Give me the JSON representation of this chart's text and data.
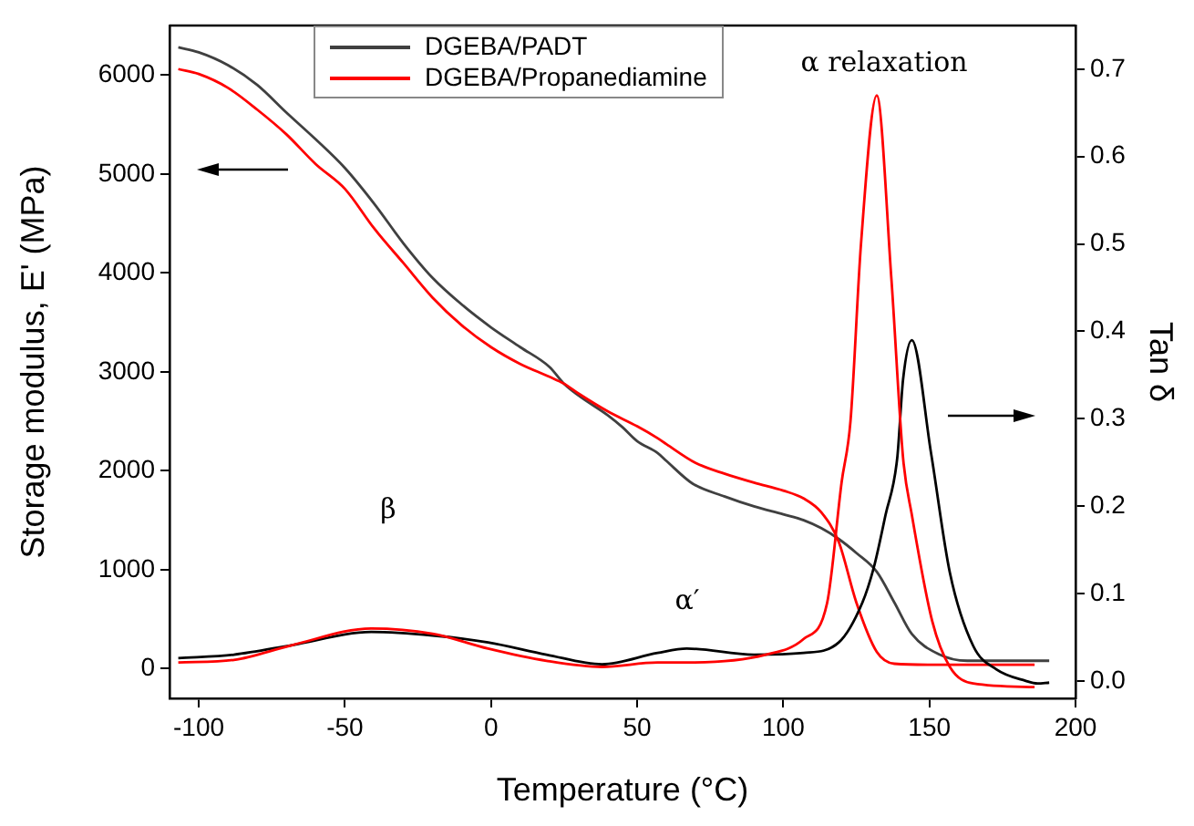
{
  "chart_data": {
    "type": "line",
    "xlabel": "Temperature (°C)",
    "ylabel": "Storage modulus, E' (MPa)",
    "y2label": "Tan δ",
    "xlim": [
      -110,
      200
    ],
    "xticks": [
      -100,
      -50,
      0,
      50,
      100,
      150,
      200
    ],
    "ylim": [
      -300,
      6500
    ],
    "yticks": [
      0,
      1000,
      2000,
      3000,
      4000,
      5000,
      6000
    ],
    "y2lim": [
      -0.02,
      0.75
    ],
    "y2ticks": [
      {
        "value": 0,
        "label": "0.0"
      },
      {
        "value": 0.1,
        "label": "0.1"
      },
      {
        "value": 0.2,
        "label": "0.2"
      },
      {
        "value": 0.3,
        "label": "0.3"
      },
      {
        "value": 0.4,
        "label": "0.4"
      },
      {
        "value": 0.5,
        "label": "0.5"
      },
      {
        "value": 0.6,
        "label": "0.6"
      },
      {
        "value": 0.7,
        "label": "0.7"
      }
    ],
    "grid": false,
    "legend": "top",
    "marker": "none",
    "line_style": "solid",
    "series": [
      {
        "name": "DGEBA/PADT",
        "color": "#404040",
        "x": [
          -107,
          -100,
          -90,
          -80,
          -70,
          -60,
          -50,
          -40,
          -30,
          -20,
          -10,
          0,
          10,
          20,
          25,
          30,
          40,
          45,
          50,
          57,
          60,
          69,
          80,
          90,
          100,
          107,
          113,
          119,
          125,
          132,
          138,
          144,
          153,
          163,
          191
        ],
        "values": [
          6280,
          6230,
          6100,
          5900,
          5620,
          5350,
          5060,
          4700,
          4300,
          3950,
          3680,
          3450,
          3250,
          3050,
          2880,
          2760,
          2560,
          2440,
          2300,
          2180,
          2100,
          1870,
          1740,
          1640,
          1560,
          1500,
          1420,
          1310,
          1170,
          980,
          670,
          350,
          150,
          80,
          80
        ]
      },
      {
        "name": "DGEBA/Propanediamine",
        "color": "#ff0000",
        "x": [
          -107,
          -100,
          -90,
          -80,
          -70,
          -60,
          -50,
          -40,
          -30,
          -20,
          -10,
          0,
          10,
          20,
          25,
          30,
          40,
          50,
          57,
          60,
          70,
          80,
          90,
          100,
          107,
          113,
          119,
          125,
          132,
          138,
          150,
          186
        ],
        "values": [
          6060,
          6010,
          5870,
          5650,
          5400,
          5100,
          4850,
          4450,
          4100,
          3750,
          3470,
          3250,
          3080,
          2950,
          2880,
          2780,
          2600,
          2450,
          2330,
          2270,
          2080,
          1970,
          1880,
          1800,
          1720,
          1580,
          1280,
          670,
          170,
          50,
          40,
          40
        ]
      },
      {
        "color": "#000000",
        "axis": "y2",
        "x": [
          -107,
          -88,
          -68,
          -41,
          -20,
          -1,
          19,
          38,
          57,
          67,
          90,
          107,
          119,
          127,
          131,
          135,
          139,
          141,
          144,
          150.6,
          157,
          165,
          173,
          183,
          187,
          191
        ],
        "values": [
          0.026,
          0.03,
          0.041,
          0.056,
          0.052,
          0.044,
          0.03,
          0.019,
          0.032,
          0.037,
          0.03,
          0.032,
          0.044,
          0.089,
          0.13,
          0.19,
          0.255,
          0.345,
          0.39,
          0.26,
          0.124,
          0.04,
          0.013,
          0,
          -0.003,
          -0.002
        ]
      },
      {
        "color": "#ff0000",
        "axis": "y2",
        "x": [
          -107,
          -88,
          -68,
          -41,
          -20,
          -1,
          19,
          38,
          57,
          67,
          94,
          107,
          115,
          120,
          123,
          126.6,
          132,
          137,
          141,
          144,
          151,
          157,
          165,
          186
        ],
        "values": [
          0.021,
          0.024,
          0.041,
          0.06,
          0.054,
          0.037,
          0.023,
          0.016,
          0.021,
          0.021,
          0.03,
          0.048,
          0.089,
          0.228,
          0.297,
          0.5,
          0.67,
          0.46,
          0.255,
          0.19,
          0.068,
          0.016,
          -0.003,
          -0.007
        ]
      }
    ],
    "annotations": [
      "α relaxation",
      "β",
      "α′"
    ]
  }
}
